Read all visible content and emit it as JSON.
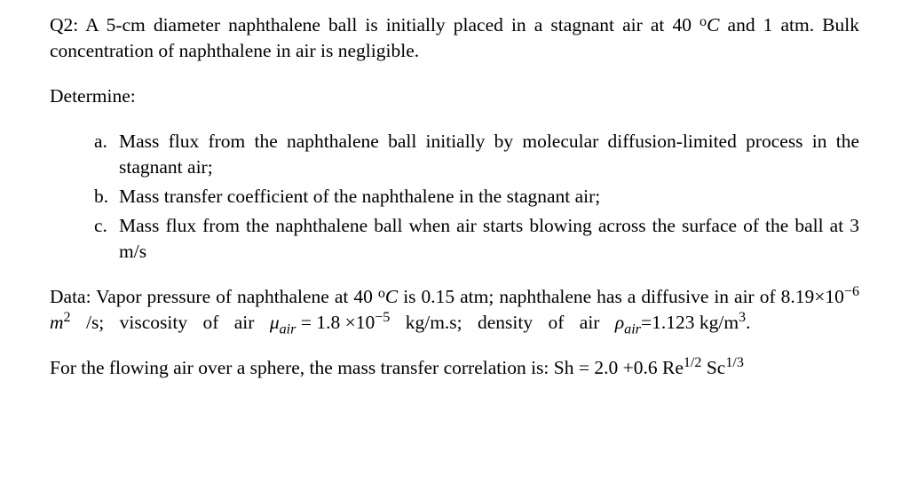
{
  "intro": {
    "q_label": "Q2:",
    "pre": " A 5-cm diameter naphthalene ball is initially placed in a stagnant air at 40 ",
    "deg": "o",
    "C": "C",
    "post": " and 1 atm. Bulk concentration of naphthalene in air is negligible."
  },
  "determine": "Determine:",
  "items": {
    "a": {
      "marker": "a.",
      "text": "Mass flux from the naphthalene ball initially by molecular diffusion-limited process in the stagnant air;"
    },
    "b": {
      "marker": "b.",
      "text": "Mass transfer coefficient of the naphthalene in the stagnant air;"
    },
    "c": {
      "marker": "c.",
      "text": "Mass flux from the naphthalene ball when air starts blowing across the surface of the ball at 3 m/s"
    }
  },
  "data": {
    "pre1": "Data: Vapor pressure of naphthalene at 40 ",
    "deg": "o",
    "C": "C",
    "mid1": " is 0.15 atm; naphthalene has a diffusive in air of ",
    "D_val": "8.19×10",
    "D_exp": "−6",
    "D_unit_pre": "   m",
    "D_unit_sup": "2",
    "D_unit_post": " /s;  viscosity  of  air  ",
    "mu_sym": "μ",
    "mu_sub": "air",
    "mu_eq": " = 1.8 ×10",
    "mu_exp": "−5",
    "mu_unit": " kg/m.s;  density  of  air ",
    "rho_sym": "ρ",
    "rho_sub": "air",
    "rho_eq": "=1.123 kg/m",
    "rho_exp": "3",
    "endP": "."
  },
  "corr": {
    "pre": "For the flowing air over a sphere, the mass transfer correlation is: Sh = 2.0 +0.6 Re",
    "re_exp": "1/2",
    "sp": " Sc",
    "sc_exp": "1/3"
  }
}
